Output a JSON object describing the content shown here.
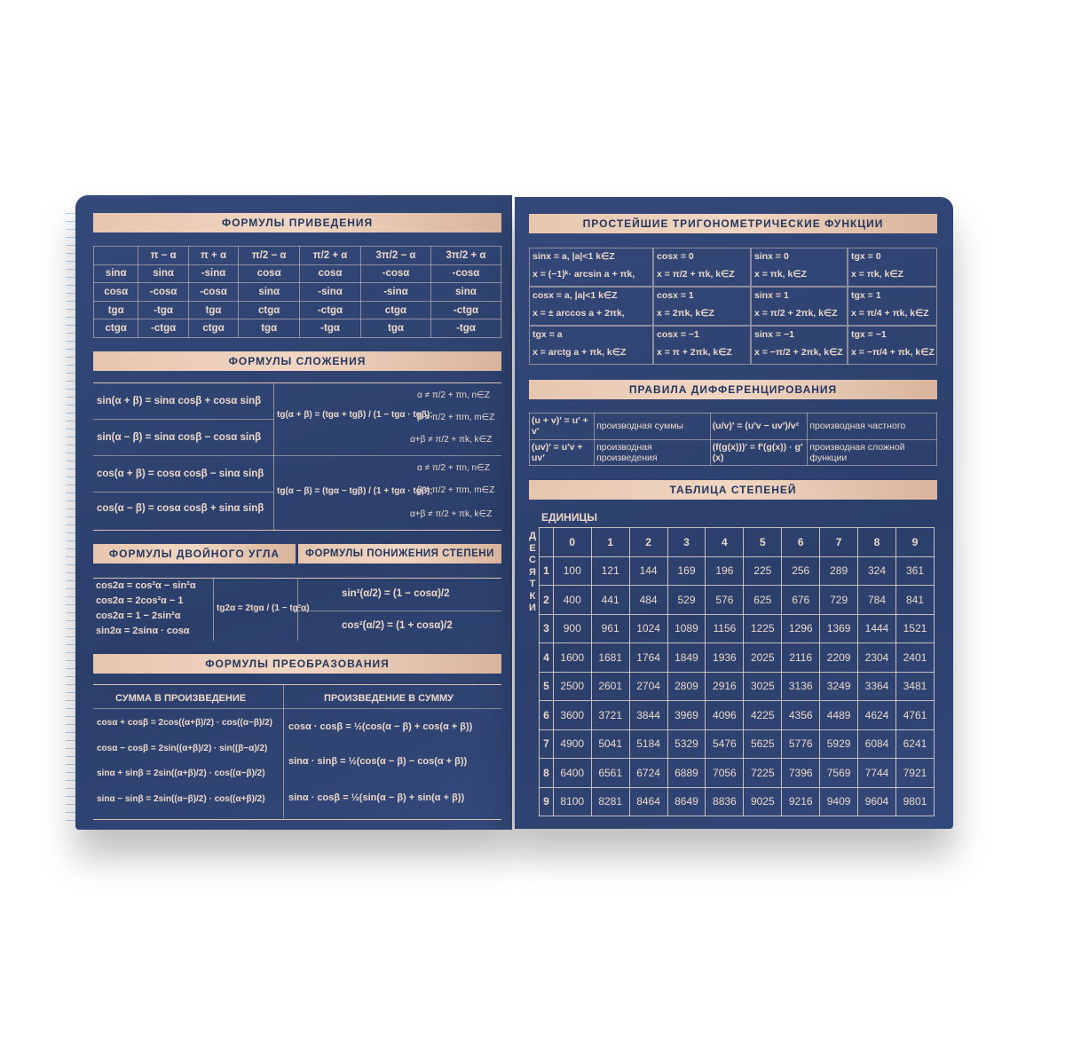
{
  "left_page": {
    "reduction": {
      "title": "ФОРМУЛЫ ПРИВЕДЕНИЯ",
      "columns": [
        "",
        "π − α",
        "π + α",
        "π/2 − α",
        "π/2 + α",
        "3π/2 − α",
        "3π/2 + α"
      ],
      "rows": [
        [
          "sinα",
          "sinα",
          "-sinα",
          "cosα",
          "cosα",
          "-cosα",
          "-cosα"
        ],
        [
          "cosα",
          "-cosα",
          "-cosα",
          "sinα",
          "-sinα",
          "-sinα",
          "sinα"
        ],
        [
          "tgα",
          "-tgα",
          "tgα",
          "ctgα",
          "-ctgα",
          "ctgα",
          "-ctgα"
        ],
        [
          "ctgα",
          "-ctgα",
          "ctgα",
          "tgα",
          "-tgα",
          "tgα",
          "-tgα"
        ]
      ]
    },
    "addition": {
      "title": "ФОРМУЛЫ СЛОЖЕНИЯ",
      "left": [
        "sin(α + β) = sinα cosβ + cosα sinβ",
        "sin(α − β) = sinα cosβ − cosα sinβ",
        "cos(α + β) = cosα cosβ − sinα sinβ",
        "cos(α − β) = cosα cosβ + sinα sinβ"
      ],
      "tg_plus": "tg(α + β) = (tgα + tgβ) / (1 − tgα · tgβ);",
      "tg_minus": "tg(α − β) = (tgα − tgβ) / (1 + tgα · tgβ);",
      "conditions": [
        "α ≠ π/2 + πn,  n∈Z",
        "β ≠ π/2 + πm,  m∈Z",
        "α+β ≠ π/2 + πk, k∈Z"
      ]
    },
    "double_angle": {
      "title": "ФОРМУЛЫ ДВОЙНОГО УГЛА",
      "items": [
        "cos2α = cos²α − sin²α",
        "cos2α = 2cos²α − 1",
        "cos2α = 1 − 2sin²α",
        "sin2α = 2sinα · cosα"
      ],
      "tg": "tg2α = 2tgα / (1 − tg²α)"
    },
    "power_reduction": {
      "title": "ФОРМУЛЫ ПОНИЖЕНИЯ СТЕПЕНИ",
      "items": [
        "sin²(α/2) = (1 − cosα)/2",
        "cos²(α/2) = (1 + cosα)/2"
      ]
    },
    "transform": {
      "title": "ФОРМУЛЫ ПРЕОБРАЗОВАНИЯ",
      "sum_header": "СУММА В ПРОИЗВЕДЕНИЕ",
      "prod_header": "ПРОИЗВЕДЕНИЕ В СУММУ",
      "sum": [
        "cosα + cosβ = 2cos((α+β)/2) · cos((α−β)/2)",
        "cosα − cosβ = 2sin((α+β)/2) · sin((β−α)/2)",
        "sinα + sinβ = 2sin((α+β)/2) · cos((α−β)/2)",
        "sinα − sinβ = 2sin((α−β)/2) · cos((α+β)/2)"
      ],
      "prod": [
        "cosα · cosβ = ½(cos(α − β) + cos(α + β))",
        "sinα · sinβ = ½(cos(α − β) − cos(α + β))",
        "sinα · cosβ = ½(sin(α − β) + sin(α + β))"
      ]
    }
  },
  "right_page": {
    "trig": {
      "title": "ПРОСТЕЙШИЕ ТРИГОНОМЕТРИЧЕСКИЕ ФУНКЦИИ",
      "cells": [
        [
          "sinx = a,  |a|<1   k∈Z",
          "x = (−1)ᵏ· arcsin a + πk,"
        ],
        [
          "cosx = 0",
          "x = π/2 + πk,   k∈Z"
        ],
        [
          "sinx = 0",
          "x = πk,        k∈Z"
        ],
        [
          "tgx = 0",
          "x = πk,       k∈Z"
        ],
        [
          "cosx = a,  |a|<1   k∈Z",
          "x = ± arccos a + 2πk,"
        ],
        [
          "cosx = 1",
          "x = 2πk,       k∈Z"
        ],
        [
          "sinx = 1",
          "x = π/2 + 2πk,  k∈Z"
        ],
        [
          "tgx = 1",
          "x = π/4 + πk,  k∈Z"
        ],
        [
          "tgx = a",
          "x = arctg a + πk,    k∈Z"
        ],
        [
          "cosx = −1",
          "x = π + 2πk,   k∈Z"
        ],
        [
          "sinx = −1",
          "x = −π/2 + 2πk, k∈Z"
        ],
        [
          "tgx = −1",
          "x = −π/4 + πk, k∈Z"
        ]
      ]
    },
    "diff": {
      "title": "ПРАВИЛА ДИФФЕРЕНЦИРОВАНИЯ",
      "rows": [
        [
          "(u + v)′ = u′ + v′",
          "производная суммы",
          "(u/v)′ = (u′v − uv′)/v²",
          "производная частного"
        ],
        [
          "(uv)′ = u′v + uv′",
          "производная произведения",
          "(f(g(x)))′ = f′(g(x)) · g′(x)",
          "производная сложной функции"
        ]
      ]
    },
    "squares": {
      "title": "ТАБЛИЦА СТЕПЕНЕЙ",
      "units_label": "ЕДИНИЦЫ",
      "tens_label": "ДЕСЯТКИ",
      "columns": [
        "0",
        "1",
        "2",
        "3",
        "4",
        "5",
        "6",
        "7",
        "8",
        "9"
      ],
      "rows": [
        [
          "1",
          "100",
          "121",
          "144",
          "169",
          "196",
          "225",
          "256",
          "289",
          "324",
          "361"
        ],
        [
          "2",
          "400",
          "441",
          "484",
          "529",
          "576",
          "625",
          "676",
          "729",
          "784",
          "841"
        ],
        [
          "3",
          "900",
          "961",
          "1024",
          "1089",
          "1156",
          "1225",
          "1296",
          "1369",
          "1444",
          "1521"
        ],
        [
          "4",
          "1600",
          "1681",
          "1764",
          "1849",
          "1936",
          "2025",
          "2116",
          "2209",
          "2304",
          "2401"
        ],
        [
          "5",
          "2500",
          "2601",
          "2704",
          "2809",
          "2916",
          "3025",
          "3136",
          "3249",
          "3364",
          "3481"
        ],
        [
          "6",
          "3600",
          "3721",
          "3844",
          "3969",
          "4096",
          "4225",
          "4356",
          "4489",
          "4624",
          "4761"
        ],
        [
          "7",
          "4900",
          "5041",
          "5184",
          "5329",
          "5476",
          "5625",
          "5776",
          "5929",
          "6084",
          "6241"
        ],
        [
          "8",
          "6400",
          "6561",
          "6724",
          "6889",
          "7056",
          "7225",
          "7396",
          "7569",
          "7744",
          "7921"
        ],
        [
          "9",
          "8100",
          "8281",
          "8464",
          "8649",
          "8836",
          "9025",
          "9216",
          "9409",
          "9604",
          "9801"
        ]
      ]
    }
  },
  "colors": {
    "page": "#2e426f",
    "header": "#e9c9b1",
    "text": "#ecd8ca"
  }
}
